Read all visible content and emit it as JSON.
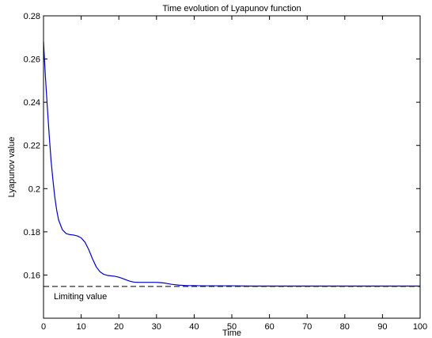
{
  "chart_data": {
    "type": "line",
    "title": "Time evolution of Lyapunov function",
    "xlabel": "Time",
    "ylabel": "Lyapunov value",
    "xlim": [
      0,
      100
    ],
    "ylim": [
      0.14,
      0.28
    ],
    "x_ticks": [
      0,
      10,
      20,
      30,
      40,
      50,
      60,
      70,
      80,
      90,
      100
    ],
    "x_tick_labels": [
      "0",
      "10",
      "20",
      "30",
      "40",
      "50",
      "60",
      "70",
      "80",
      "90",
      "100"
    ],
    "y_ticks": [
      0.16,
      0.18,
      0.2,
      0.22,
      0.24,
      0.26,
      0.28
    ],
    "y_tick_labels": [
      "0.16",
      "0.18",
      "0.2",
      "0.22",
      "0.24",
      "0.26",
      "0.28"
    ],
    "grid": false,
    "legend": false,
    "series": [
      {
        "color": "#0000cc",
        "style": "solid",
        "x": [
          0,
          0.5,
          1,
          1.5,
          2,
          2.5,
          3,
          3.5,
          4,
          5,
          6,
          7,
          8,
          9,
          10,
          11,
          12,
          13,
          14,
          15,
          16,
          17,
          18,
          19,
          20,
          21,
          22,
          23,
          24,
          25,
          26,
          27,
          28,
          29,
          30,
          31,
          32,
          33,
          34,
          35,
          36,
          38,
          40,
          42,
          45,
          50,
          55,
          60,
          70,
          80,
          90,
          100
        ],
        "y": [
          0.268,
          0.252,
          0.238,
          0.225,
          0.213,
          0.204,
          0.196,
          0.19,
          0.1855,
          0.181,
          0.1792,
          0.1787,
          0.1785,
          0.1781,
          0.1772,
          0.1752,
          0.1718,
          0.1675,
          0.1638,
          0.1615,
          0.1603,
          0.1598,
          0.1596,
          0.1594,
          0.159,
          0.1584,
          0.1577,
          0.1571,
          0.1567,
          0.1566,
          0.1566,
          0.1566,
          0.1566,
          0.1566,
          0.1566,
          0.1565,
          0.1563,
          0.156,
          0.1557,
          0.1555,
          0.1553,
          0.1551,
          0.1551,
          0.155,
          0.155,
          0.155,
          0.1549,
          0.1549,
          0.1549,
          0.1549,
          0.1549,
          0.1549
        ]
      }
    ],
    "reference_line": {
      "y": 0.1547,
      "style": "dashed",
      "color": "#000000",
      "label": "Limiting value"
    }
  }
}
